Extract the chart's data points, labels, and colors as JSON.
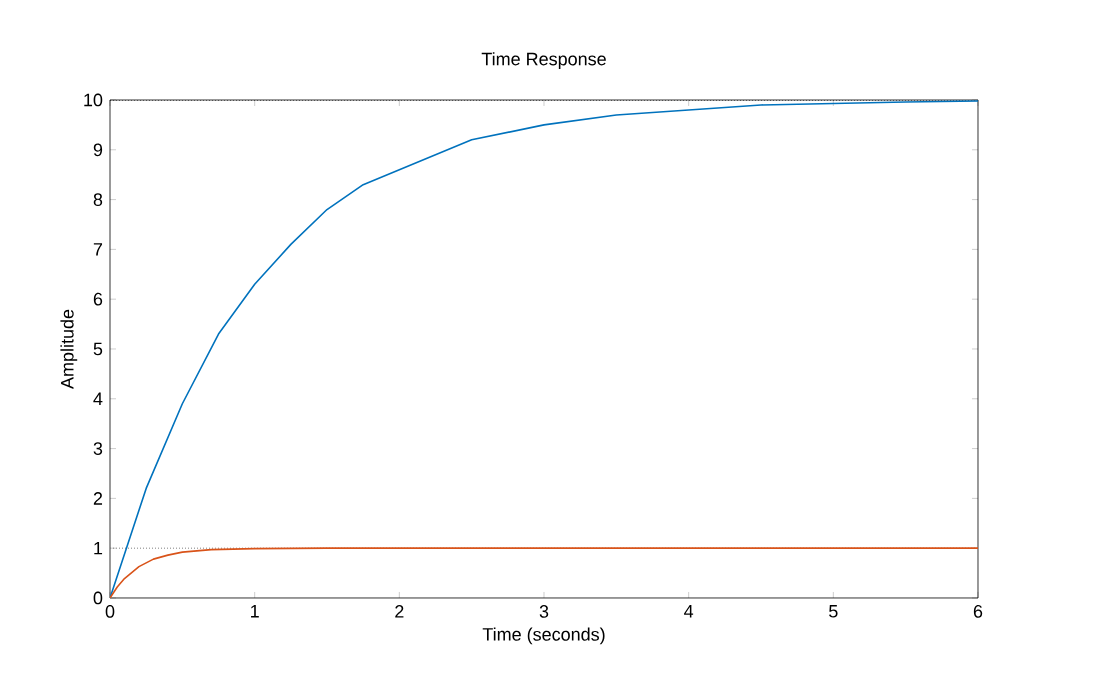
{
  "chart_data": {
    "type": "line",
    "title": "Time Response",
    "xlabel": "Time (seconds)",
    "ylabel": "Amplitude",
    "xlim": [
      0,
      6
    ],
    "ylim": [
      0,
      10
    ],
    "xticks": [
      0,
      1,
      2,
      3,
      4,
      5,
      6
    ],
    "yticks": [
      0,
      1,
      2,
      3,
      4,
      5,
      6,
      7,
      8,
      9,
      10
    ],
    "series": [
      {
        "color": "#0072bd",
        "x": [
          0,
          0.25,
          0.5,
          0.75,
          1,
          1.25,
          1.5,
          1.75,
          2,
          2.5,
          3,
          3.5,
          4,
          4.5,
          5,
          5.5,
          6
        ],
        "values": [
          0,
          2.2,
          3.9,
          5.3,
          6.3,
          7.1,
          7.8,
          8.3,
          8.6,
          9.2,
          9.5,
          9.7,
          9.8,
          9.9,
          9.93,
          9.96,
          9.98
        ]
      },
      {
        "color": "#d95319",
        "x": [
          0,
          0.05,
          0.1,
          0.2,
          0.3,
          0.4,
          0.5,
          0.7,
          1,
          1.5,
          2,
          3,
          4,
          5,
          6
        ],
        "values": [
          0,
          0.22,
          0.39,
          0.63,
          0.78,
          0.86,
          0.92,
          0.97,
          0.99,
          1,
          1,
          1,
          1,
          1,
          1
        ]
      }
    ],
    "ref_lines": [
      {
        "axis": "y",
        "value": 10,
        "color": "#000000",
        "line_style": "dotted"
      },
      {
        "axis": "y",
        "value": 1,
        "color": "#808080",
        "line_style": "dotted"
      }
    ],
    "marker": "none",
    "line_style": "solid"
  }
}
